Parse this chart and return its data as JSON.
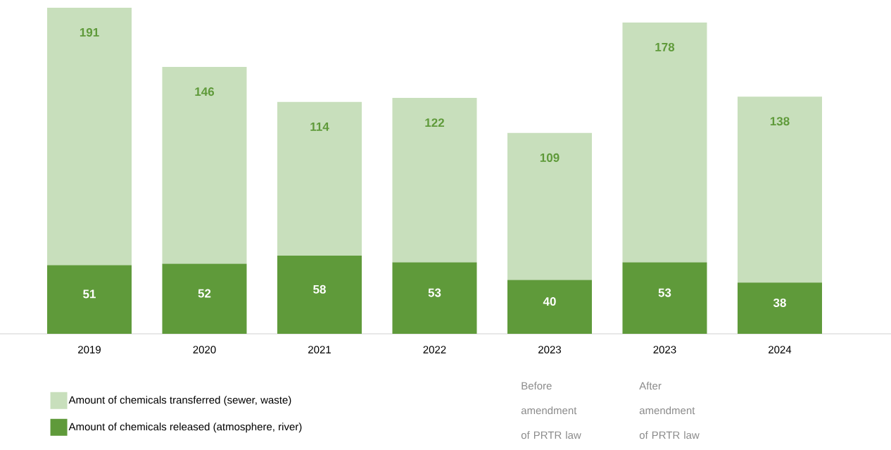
{
  "chart_data": {
    "type": "bar",
    "stacked": true,
    "data_labels": true,
    "legend": "bottom left",
    "categories": [
      "2019",
      "2020",
      "2021",
      "2022",
      "2023",
      "2023",
      "2024"
    ],
    "series": [
      {
        "name": "Amount of chemicals released (atmosphere, river)",
        "color": "#5f9a3a",
        "values": [
          51,
          52,
          58,
          53,
          40,
          53,
          38
        ]
      },
      {
        "name": "Amount of chemicals transferred (sewer, waste)",
        "color": "#c8dfbc",
        "values": [
          191,
          146,
          114,
          122,
          109,
          178,
          138
        ]
      }
    ],
    "annotations": [
      "Before amendment of PRTR law",
      "After amendment of PRTR law"
    ]
  }
}
